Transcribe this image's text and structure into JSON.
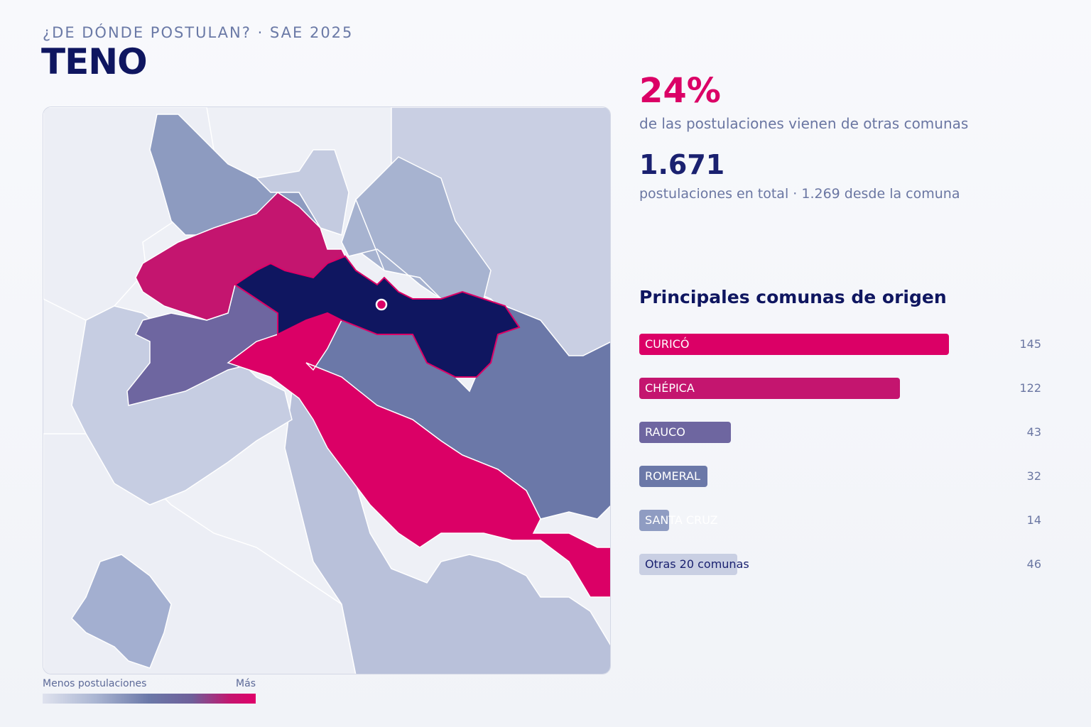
{
  "header": {
    "kicker": "¿DE DÓNDE POSTULAN? · SAE 2025",
    "title": "TENO"
  },
  "stats": {
    "pct": "24%",
    "pct_label": "de las postulaciones vienen de otras comunas",
    "total": "1.671",
    "total_label": "postulaciones en total · 1.269 desde la comuna"
  },
  "origins": {
    "title": "Principales comunas de origen",
    "max": 145,
    "items": [
      {
        "label": "CURICÓ",
        "value": 145,
        "display": "145",
        "color": "#db0066",
        "dark": false
      },
      {
        "label": "CHÉPICA",
        "value": 122,
        "display": "122",
        "color": "#c4156f",
        "dark": false
      },
      {
        "label": "RAUCO",
        "value": 43,
        "display": "43",
        "color": "#6e66a0",
        "dark": false
      },
      {
        "label": "ROMERAL",
        "value": 32,
        "display": "32",
        "color": "#6b78a8",
        "dark": false
      },
      {
        "label": "SANTA CRUZ",
        "value": 14,
        "display": "14",
        "color": "#8f9cc2",
        "dark": false
      },
      {
        "label": "Otras 20 comunas",
        "value": 46,
        "display": "46",
        "color": "#c9cfe3",
        "dark": true
      }
    ]
  },
  "legend": {
    "low": "Menos postulaciones",
    "high": "Más"
  },
  "colors": {
    "accent": "#db0066",
    "navy": "#0f1660",
    "home": "#0f1660"
  }
}
